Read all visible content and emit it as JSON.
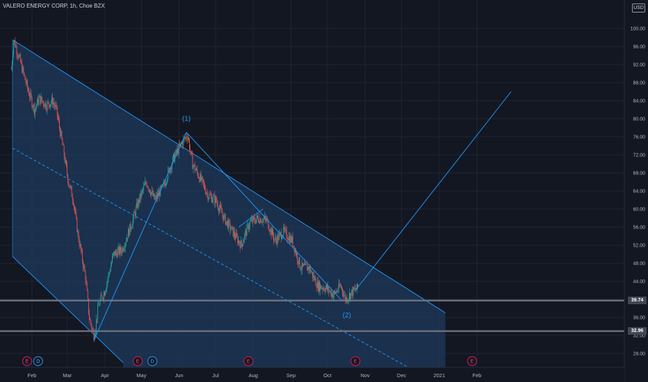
{
  "header": {
    "title": "VALERO ENERGY CORP, 1h, Choe BZX",
    "currency": "USD"
  },
  "chart_data": {
    "type": "candlestick",
    "symbol": "VALERO ENERGY CORP",
    "interval": "1h",
    "exchange": "Choe BZX",
    "ylim": [
      25,
      104
    ],
    "y_ticks": [
      "100.00",
      "96.00",
      "92.00",
      "88.00",
      "84.00",
      "80.00",
      "76.00",
      "72.00",
      "68.00",
      "64.00",
      "60.00",
      "56.00",
      "52.00",
      "48.00",
      "44.00",
      "40.00",
      "36.00",
      "32.00",
      "28.00"
    ],
    "x_ticks": [
      "Feb",
      "Mar",
      "Apr",
      "May",
      "Jun",
      "Jul",
      "Aug",
      "Sep",
      "Oct",
      "Nov",
      "Dec",
      "2021",
      "Feb"
    ],
    "price_path": [
      [
        "2020-01-15",
        91.0
      ],
      [
        "2020-01-17",
        97.5
      ],
      [
        "2020-01-22",
        93.0
      ],
      [
        "2020-01-28",
        87.0
      ],
      [
        "2020-02-03",
        82.0
      ],
      [
        "2020-02-07",
        84.5
      ],
      [
        "2020-02-13",
        83.0
      ],
      [
        "2020-02-18",
        84.0
      ],
      [
        "2020-02-21",
        82.0
      ],
      [
        "2020-02-25",
        76.0
      ],
      [
        "2020-03-02",
        66.0
      ],
      [
        "2020-03-06",
        62.0
      ],
      [
        "2020-03-10",
        54.0
      ],
      [
        "2020-03-16",
        45.0
      ],
      [
        "2020-03-19",
        36.0
      ],
      [
        "2020-03-23",
        32.0
      ],
      [
        "2020-03-27",
        39.0
      ],
      [
        "2020-04-01",
        42.0
      ],
      [
        "2020-04-08",
        50.0
      ],
      [
        "2020-04-15",
        51.0
      ],
      [
        "2020-04-22",
        56.0
      ],
      [
        "2020-04-29",
        62.0
      ],
      [
        "2020-05-05",
        66.0
      ],
      [
        "2020-05-12",
        62.0
      ],
      [
        "2020-05-19",
        65.0
      ],
      [
        "2020-05-27",
        71.0
      ],
      [
        "2020-06-03",
        74.5
      ],
      [
        "2020-06-08",
        76.5
      ],
      [
        "2020-06-12",
        70.0
      ],
      [
        "2020-06-18",
        67.0
      ],
      [
        "2020-06-25",
        63.0
      ],
      [
        "2020-07-01",
        62.0
      ],
      [
        "2020-07-08",
        58.0
      ],
      [
        "2020-07-15",
        55.0
      ],
      [
        "2020-07-22",
        52.0
      ],
      [
        "2020-07-29",
        57.0
      ],
      [
        "2020-08-05",
        58.0
      ],
      [
        "2020-08-12",
        57.5
      ],
      [
        "2020-08-19",
        53.0
      ],
      [
        "2020-08-26",
        55.0
      ],
      [
        "2020-09-02",
        53.0
      ],
      [
        "2020-09-09",
        47.0
      ],
      [
        "2020-09-16",
        47.0
      ],
      [
        "2020-09-23",
        43.0
      ],
      [
        "2020-09-30",
        42.5
      ],
      [
        "2020-10-06",
        41.0
      ],
      [
        "2020-10-12",
        43.0
      ],
      [
        "2020-10-16",
        40.0
      ],
      [
        "2020-10-21",
        41.5
      ],
      [
        "2020-10-26",
        42.5
      ]
    ],
    "drawings": {
      "channel_upper": [
        [
          "2020-01-16",
          97.5
        ],
        [
          "2021-01-06",
          37.0
        ]
      ],
      "channel_lower": [
        [
          "2020-01-16",
          49.5
        ],
        [
          "2020-04-16",
          26.0
        ]
      ],
      "channel_mid": [
        [
          "2020-01-16",
          73.5
        ],
        [
          "2020-12-06",
          25.0
        ]
      ],
      "wave_lines": [
        [
          [
            "2020-03-23",
            31.0
          ],
          [
            "2020-06-07",
            77.0
          ]
        ],
        [
          [
            "2020-06-07",
            77.0
          ],
          [
            "2020-10-13",
            39.7
          ]
        ],
        [
          [
            "2020-10-24",
            42.0
          ],
          [
            "2021-03-01",
            86.0
          ]
        ],
        [
          [
            "2020-07-20",
            56.0
          ],
          [
            "2020-08-09",
            60.0
          ]
        ]
      ],
      "wave_labels": [
        {
          "text": "(1)",
          "date": "2020-06-07",
          "price": 80.0
        },
        {
          "text": "(2)",
          "date": "2020-10-17",
          "price": 36.5
        }
      ],
      "horizontal_levels": [
        39.74,
        32.96
      ]
    },
    "price_labels": [
      "39.74",
      "32.96"
    ],
    "event_markers": [
      {
        "date": "2020-01-28",
        "kind": "E"
      },
      {
        "date": "2020-02-06",
        "kind": "D"
      },
      {
        "date": "2020-04-28",
        "kind": "E"
      },
      {
        "date": "2020-05-10",
        "kind": "D"
      },
      {
        "date": "2020-07-28",
        "kind": "E"
      },
      {
        "date": "2020-10-24",
        "kind": "E"
      },
      {
        "date": "2021-01-28",
        "kind": "E"
      }
    ],
    "grid": true
  },
  "colors": {
    "background": "#131722",
    "grid": "#1f2433",
    "bull": "#26a69a",
    "bear": "#ef5350",
    "drawing": "#2196f3",
    "channel_fill": "#1e3a5c",
    "level": "#6a6e7a",
    "axis_text": "#b2b5be"
  }
}
